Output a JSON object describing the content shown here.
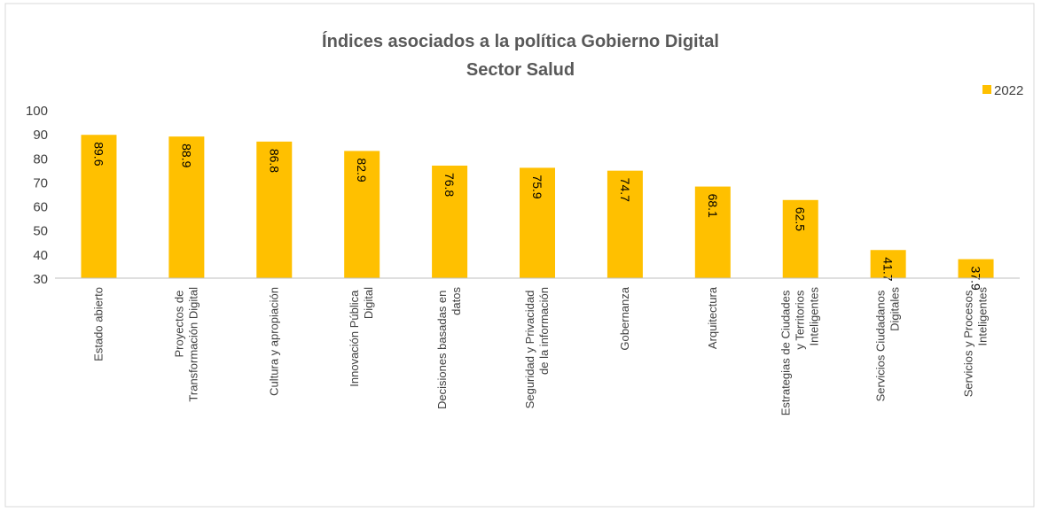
{
  "chart_data": {
    "type": "bar",
    "title": [
      "Índices asociados a la política Gobierno Digital",
      "Sector Salud"
    ],
    "categories": [
      "Estado abierto",
      "Proyectos de Transformación Digital",
      "Cultura y apropiación",
      "Innovación Pública Digital",
      "Decisiones basadas en datos",
      "Seguridad y Privacidad de la información",
      "Gobernanza",
      "Arquitectura",
      "Estrategias de Ciudades y Territorios Inteligentes",
      "Servicios Ciudadanos Digitales",
      "Servicios y Procesos Inteligentes"
    ],
    "series": [
      {
        "name": "2022",
        "color": "#ffc000",
        "values": [
          89.6,
          88.9,
          86.8,
          82.9,
          76.8,
          75.9,
          74.7,
          68.1,
          62.5,
          41.7,
          37.9
        ]
      }
    ],
    "ylim": [
      30,
      100
    ],
    "yticks": [
      30,
      40,
      50,
      60,
      70,
      80,
      90,
      100
    ],
    "grid": false,
    "legend": "top-right"
  }
}
